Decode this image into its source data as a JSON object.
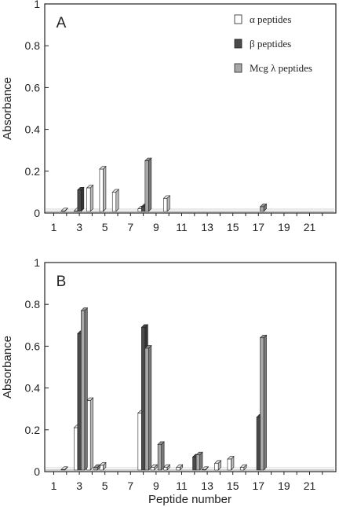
{
  "chart_data": [
    {
      "type": "bar",
      "panel_label": "A",
      "ylabel": "Absorbance",
      "xlabel": "",
      "ylim": [
        0,
        1
      ],
      "yticks": [
        "0",
        "0.2",
        "0.4",
        "0.6",
        "0.8",
        "1"
      ],
      "xticks": [
        "1",
        "3",
        "5",
        "7",
        "9",
        "11",
        "13",
        "15",
        "17",
        "19",
        "21"
      ],
      "x": [
        1,
        2,
        3,
        4,
        5,
        6,
        7,
        8,
        9,
        10,
        11,
        12,
        13,
        14,
        15,
        16,
        17,
        18,
        19,
        20,
        21,
        22
      ],
      "grid": false,
      "legend_position": "top-right",
      "series": [
        {
          "name": "α peptides",
          "color": "#ffffff",
          "values": [
            0,
            0.01,
            0.01,
            0.12,
            0.21,
            0.1,
            0,
            0.02,
            0,
            0.07,
            0,
            0,
            0,
            0,
            0,
            0,
            0,
            0,
            0,
            0,
            0,
            0
          ]
        },
        {
          "name": "β peptides",
          "color": "#4a4a4a",
          "values": [
            0,
            0,
            0.11,
            0,
            0,
            0,
            0,
            0.03,
            0,
            0,
            0,
            0,
            0,
            0,
            0,
            0,
            0,
            0,
            0,
            0,
            0,
            0
          ]
        },
        {
          "name": "Mcg λ peptides",
          "color": "#a8a8a8",
          "values": [
            0,
            0,
            0,
            0,
            0,
            0,
            0,
            0.25,
            0,
            0,
            0,
            0,
            0,
            0,
            0,
            0,
            0.03,
            0,
            0,
            0,
            0,
            0
          ]
        }
      ]
    },
    {
      "type": "bar",
      "panel_label": "B",
      "ylabel": "Absorbance",
      "xlabel": "Peptide number",
      "ylim": [
        0,
        1
      ],
      "yticks": [
        "0",
        "0.2",
        "0.4",
        "0.6",
        "0.8",
        "1"
      ],
      "xticks": [
        "1",
        "3",
        "5",
        "7",
        "9",
        "11",
        "13",
        "15",
        "17",
        "19",
        "21"
      ],
      "x": [
        1,
        2,
        3,
        4,
        5,
        6,
        7,
        8,
        9,
        10,
        11,
        12,
        13,
        14,
        15,
        16,
        17,
        18,
        19,
        20,
        21,
        22
      ],
      "grid": false,
      "legend_position": "none",
      "series": [
        {
          "name": "α peptides",
          "color": "#ffffff",
          "values": [
            0,
            0.01,
            0.21,
            0.34,
            0.03,
            0,
            0,
            0.28,
            0.02,
            0.02,
            0.02,
            0,
            0.01,
            0.04,
            0.06,
            0.02,
            0,
            0,
            0,
            0,
            0,
            0
          ]
        },
        {
          "name": "β peptides",
          "color": "#4a4a4a",
          "values": [
            0,
            0,
            0.66,
            0,
            0,
            0,
            0,
            0.69,
            0,
            0,
            0,
            0.07,
            0,
            0,
            0,
            0,
            0.26,
            0,
            0,
            0,
            0,
            0
          ]
        },
        {
          "name": "Mcg λ peptides",
          "color": "#a8a8a8",
          "values": [
            0,
            0,
            0.77,
            0.02,
            0,
            0,
            0,
            0.59,
            0.13,
            0,
            0,
            0.08,
            0,
            0,
            0,
            0,
            0.64,
            0,
            0,
            0,
            0,
            0
          ]
        }
      ]
    }
  ]
}
